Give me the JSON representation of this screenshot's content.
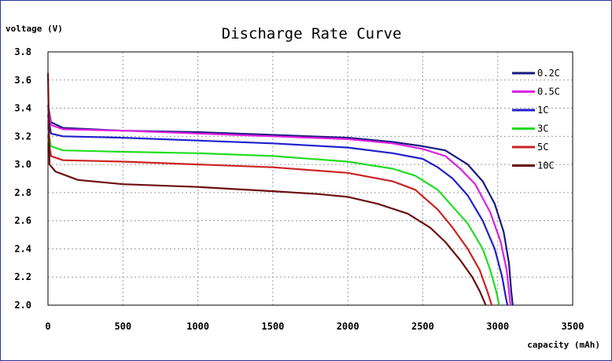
{
  "chart_data": {
    "type": "line",
    "title": "Discharge Rate Curve",
    "ylabel": "voltage (V)",
    "xlabel": "capacity (mAh)",
    "xlim": [
      0,
      3500
    ],
    "ylim": [
      2.0,
      3.8
    ],
    "x_ticks": [
      "0",
      "500",
      "1000",
      "1500",
      "2000",
      "2500",
      "3000",
      "3500"
    ],
    "y_ticks": [
      "3.8",
      "3.6",
      "3.4",
      "3.2",
      "3.0",
      "2.8",
      "2.6",
      "2.4",
      "2.2",
      "2.0"
    ],
    "grid": true,
    "legend_position": "right",
    "series": [
      {
        "name": "0.2C",
        "color": "#1a1a80",
        "points": [
          [
            0,
            3.42
          ],
          [
            20,
            3.3
          ],
          [
            100,
            3.26
          ],
          [
            500,
            3.24
          ],
          [
            1000,
            3.23
          ],
          [
            1500,
            3.21
          ],
          [
            2000,
            3.19
          ],
          [
            2300,
            3.16
          ],
          [
            2500,
            3.13
          ],
          [
            2650,
            3.1
          ],
          [
            2800,
            3.0
          ],
          [
            2900,
            2.88
          ],
          [
            2980,
            2.72
          ],
          [
            3040,
            2.52
          ],
          [
            3075,
            2.3
          ],
          [
            3090,
            2.1
          ],
          [
            3100,
            2.0
          ]
        ]
      },
      {
        "name": "0.5C",
        "color": "#e020e0",
        "points": [
          [
            0,
            3.4
          ],
          [
            20,
            3.28
          ],
          [
            100,
            3.25
          ],
          [
            500,
            3.24
          ],
          [
            1000,
            3.22
          ],
          [
            1500,
            3.2
          ],
          [
            2000,
            3.18
          ],
          [
            2300,
            3.15
          ],
          [
            2500,
            3.11
          ],
          [
            2650,
            3.06
          ],
          [
            2750,
            2.97
          ],
          [
            2850,
            2.86
          ],
          [
            2950,
            2.66
          ],
          [
            3020,
            2.45
          ],
          [
            3060,
            2.25
          ],
          [
            3080,
            2.05
          ],
          [
            3085,
            2.0
          ]
        ]
      },
      {
        "name": "1C",
        "color": "#2020cc",
        "points": [
          [
            0,
            3.35
          ],
          [
            20,
            3.22
          ],
          [
            100,
            3.2
          ],
          [
            500,
            3.19
          ],
          [
            1000,
            3.17
          ],
          [
            1500,
            3.15
          ],
          [
            2000,
            3.12
          ],
          [
            2300,
            3.08
          ],
          [
            2500,
            3.04
          ],
          [
            2600,
            2.98
          ],
          [
            2700,
            2.9
          ],
          [
            2800,
            2.78
          ],
          [
            2900,
            2.6
          ],
          [
            2980,
            2.4
          ],
          [
            3030,
            2.2
          ],
          [
            3055,
            2.05
          ],
          [
            3065,
            2.0
          ]
        ]
      },
      {
        "name": "3C",
        "color": "#22dd22",
        "points": [
          [
            0,
            3.25
          ],
          [
            20,
            3.13
          ],
          [
            100,
            3.1
          ],
          [
            500,
            3.09
          ],
          [
            1000,
            3.08
          ],
          [
            1500,
            3.06
          ],
          [
            2000,
            3.02
          ],
          [
            2300,
            2.97
          ],
          [
            2450,
            2.92
          ],
          [
            2600,
            2.82
          ],
          [
            2700,
            2.7
          ],
          [
            2800,
            2.58
          ],
          [
            2900,
            2.4
          ],
          [
            2950,
            2.25
          ],
          [
            2990,
            2.1
          ],
          [
            3010,
            2.0
          ]
        ]
      },
      {
        "name": "5C",
        "color": "#cc2222",
        "points": [
          [
            0,
            3.2
          ],
          [
            20,
            3.06
          ],
          [
            100,
            3.03
          ],
          [
            500,
            3.02
          ],
          [
            1000,
            3.0
          ],
          [
            1500,
            2.98
          ],
          [
            2000,
            2.94
          ],
          [
            2300,
            2.88
          ],
          [
            2450,
            2.82
          ],
          [
            2600,
            2.68
          ],
          [
            2700,
            2.55
          ],
          [
            2800,
            2.4
          ],
          [
            2880,
            2.25
          ],
          [
            2930,
            2.1
          ],
          [
            2960,
            2.0
          ]
        ]
      },
      {
        "name": "10C",
        "color": "#6b0f0f",
        "points": [
          [
            0,
            3.65
          ],
          [
            10,
            3.0
          ],
          [
            50,
            2.95
          ],
          [
            200,
            2.89
          ],
          [
            500,
            2.86
          ],
          [
            1000,
            2.84
          ],
          [
            1500,
            2.81
          ],
          [
            1800,
            2.79
          ],
          [
            2000,
            2.77
          ],
          [
            2200,
            2.72
          ],
          [
            2400,
            2.65
          ],
          [
            2550,
            2.55
          ],
          [
            2650,
            2.45
          ],
          [
            2750,
            2.32
          ],
          [
            2830,
            2.2
          ],
          [
            2880,
            2.1
          ],
          [
            2920,
            2.0
          ]
        ]
      }
    ]
  }
}
